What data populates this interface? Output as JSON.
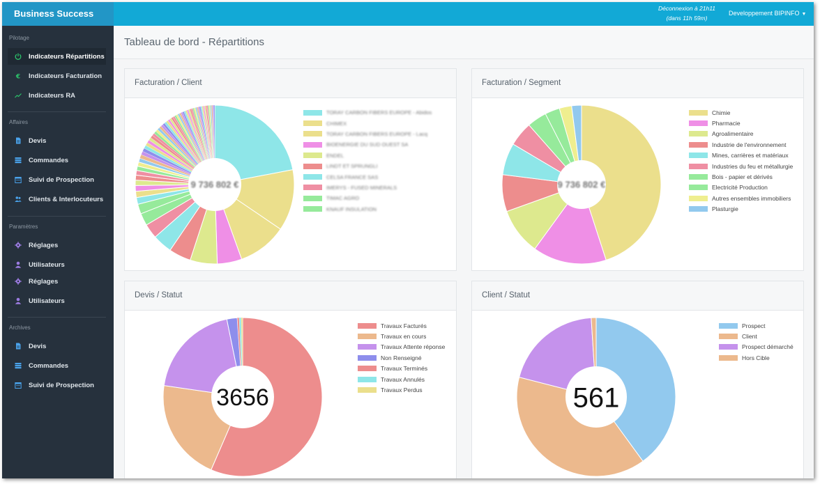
{
  "app": {
    "brand": "Business Success"
  },
  "topbar": {
    "deconnexion_line1": "Déconnexion à 21h11",
    "deconnexion_line2": "(dans 11h 59m)",
    "user_label": "Developpement BIPINFO"
  },
  "sidebar": {
    "sections": [
      {
        "label": "Pilotage",
        "items": [
          {
            "label": "Indicateurs Répartitions",
            "icon": "power-icon",
            "active": true
          },
          {
            "label": "Indicateurs Facturation",
            "icon": "euro-icon"
          },
          {
            "label": "Indicateurs RA",
            "icon": "trend-icon"
          }
        ]
      },
      {
        "label": "Affaires",
        "items": [
          {
            "label": "Devis",
            "icon": "document-icon"
          },
          {
            "label": "Commandes",
            "icon": "list-icon"
          },
          {
            "label": "Suivi de Prospection",
            "icon": "calendar-icon"
          },
          {
            "label": "Clients & Interlocuteurs",
            "icon": "users-icon"
          }
        ]
      },
      {
        "label": "Paramètres",
        "items": [
          {
            "label": "Réglages",
            "icon": "gear-icon"
          },
          {
            "label": "Utilisateurs",
            "icon": "user-icon"
          },
          {
            "label": "Réglages",
            "icon": "gear-icon"
          },
          {
            "label": "Utilisateurs",
            "icon": "user-icon"
          }
        ]
      },
      {
        "label": "Archives",
        "items": [
          {
            "label": "Devis",
            "icon": "document-icon"
          },
          {
            "label": "Commandes",
            "icon": "list-icon"
          },
          {
            "label": "Suivi de Prospection",
            "icon": "calendar-icon"
          }
        ]
      }
    ]
  },
  "page": {
    "title": "Tableau de bord - Répartitions"
  },
  "panels": {
    "facturation_client": {
      "title": "Facturation / Client",
      "center_value": "9 736 802 €",
      "legend": [
        {
          "label": "TORAY CARBON FIBERS EUROPE - Abidos",
          "color": "#8ee6e8"
        },
        {
          "label": "CHIMEX",
          "color": "#ebdf8c"
        },
        {
          "label": "TORAY CARBON FIBERS EUROPE - Lacq",
          "color": "#ebdf8c"
        },
        {
          "label": "BIOENERGIE DU SUD OUEST SA",
          "color": "#ef8fe6"
        },
        {
          "label": "ENDEL",
          "color": "#dde98e"
        },
        {
          "label": "LINDT ET SPRUNGLI",
          "color": "#ed8d8d"
        },
        {
          "label": "CELSA FRANCE SAS",
          "color": "#8ee6e8"
        },
        {
          "label": "IMERYS - FUSED MINERALS",
          "color": "#ef8fa3"
        },
        {
          "label": "TIMAC AGRO",
          "color": "#96ea9b"
        },
        {
          "label": "KNAUF INSULATION",
          "color": "#96ea9b"
        }
      ]
    },
    "facturation_segment": {
      "title": "Facturation / Segment",
      "center_value": "9 736 802 €",
      "legend": [
        {
          "label": "Chimie",
          "color": "#ebdf8c"
        },
        {
          "label": "Pharmacie",
          "color": "#ef8fe6"
        },
        {
          "label": "Agroalimentaire",
          "color": "#dde98e"
        },
        {
          "label": "Industrie de l'environnement",
          "color": "#ed8d8d"
        },
        {
          "label": "Mines, carrières et matériaux",
          "color": "#8ee6e8"
        },
        {
          "label": "Industries du feu et métallurgie",
          "color": "#ef8fa3"
        },
        {
          "label": "Bois - papier et dérivés",
          "color": "#96ea9b"
        },
        {
          "label": "Electricité Production",
          "color": "#96ea9b"
        },
        {
          "label": "Autres ensembles immobiliers",
          "color": "#efee8f"
        },
        {
          "label": "Plasturgie",
          "color": "#92c9ee"
        }
      ]
    },
    "devis_statut": {
      "title": "Devis / Statut",
      "center_value": "3656",
      "legend": [
        {
          "label": "Travaux Facturés",
          "color": "#ed8d8d"
        },
        {
          "label": "Travaux en cours",
          "color": "#ecb98d"
        },
        {
          "label": "Travaux Attente réponse",
          "color": "#c592ec"
        },
        {
          "label": "Non Renseigné",
          "color": "#8e8eec"
        },
        {
          "label": "Travaux Terminés",
          "color": "#ed8d8d"
        },
        {
          "label": "Travaux Annulés",
          "color": "#8ee6e8"
        },
        {
          "label": "Travaux Perdus",
          "color": "#ebdf8c"
        }
      ]
    },
    "client_statut": {
      "title": "Client / Statut",
      "center_value": "561",
      "legend": [
        {
          "label": "Prospect",
          "color": "#92c9ee"
        },
        {
          "label": "Client",
          "color": "#ecb98d"
        },
        {
          "label": "Prospect démarché",
          "color": "#c592ec"
        },
        {
          "label": "Hors Cible",
          "color": "#ecb98d"
        }
      ]
    }
  },
  "chart_data": [
    {
      "type": "pie",
      "title": "Facturation / Segment",
      "categories": [
        "Chimie",
        "Pharmacie",
        "Agroalimentaire",
        "Industrie de l'environnement",
        "Mines, carrières et matériaux",
        "Industries du feu et métallurgie",
        "Bois - papier et dérivés",
        "Electricité Production",
        "Autres ensembles immobiliers",
        "Plasturgie"
      ],
      "values": [
        45,
        15,
        9.5,
        7.5,
        6.5,
        5,
        4,
        3,
        2.5,
        2
      ],
      "colors": [
        "#ebdf8c",
        "#ef8fe6",
        "#dde98e",
        "#ed8d8d",
        "#8ee6e8",
        "#ef8fa3",
        "#96ea9b",
        "#96ea9b",
        "#efee8f",
        "#92c9ee"
      ],
      "legend": "right"
    },
    {
      "type": "pie",
      "title": "Devis / Statut",
      "categories": [
        "Travaux Facturés",
        "Travaux en cours",
        "Travaux Attente réponse",
        "Non Renseigné",
        "Travaux Terminés",
        "Travaux Annulés",
        "Travaux Perdus"
      ],
      "values": [
        56.5,
        20.8,
        19.5,
        2.1,
        0.4,
        0.4,
        0.3
      ],
      "colors": [
        "#ed8d8d",
        "#ecb98d",
        "#c592ec",
        "#8e8eec",
        "#ed8d8d",
        "#8ee6e8",
        "#ebdf8c"
      ],
      "legend": "right"
    },
    {
      "type": "pie",
      "title": "Client / Statut",
      "categories": [
        "Prospect",
        "Client",
        "Prospect démarché",
        "Hors Cible"
      ],
      "values": [
        40,
        39,
        20,
        1
      ],
      "colors": [
        "#92c9ee",
        "#ecb98d",
        "#c592ec",
        "#ecb98d"
      ],
      "legend": "right"
    },
    {
      "type": "pie",
      "title": "Facturation / Client",
      "categories": [
        "TORAY CARBON FIBERS EUROPE - Abidos",
        "CHIMEX",
        "TORAY CARBON FIBERS EUROPE - Lacq",
        "BIOENERGIE DU SUD OUEST SA",
        "ENDEL",
        "LINDT ET SPRUNGLI",
        "CELSA FRANCE SAS",
        "IMERYS - FUSED MINERALS",
        "TIMAC AGRO",
        "KNAUF INSULATION"
      ],
      "values": [
        22,
        12.5,
        10,
        5,
        5.5,
        4.5,
        4,
        3,
        2.5,
        2
      ],
      "colors": [
        "#8ee6e8",
        "#ebdf8c",
        "#ebdf8c",
        "#ef8fe6",
        "#dde98e",
        "#ed8d8d",
        "#8ee6e8",
        "#ef8fa3",
        "#96ea9b",
        "#96ea9b"
      ],
      "other_slices": 60,
      "legend": "right"
    }
  ]
}
